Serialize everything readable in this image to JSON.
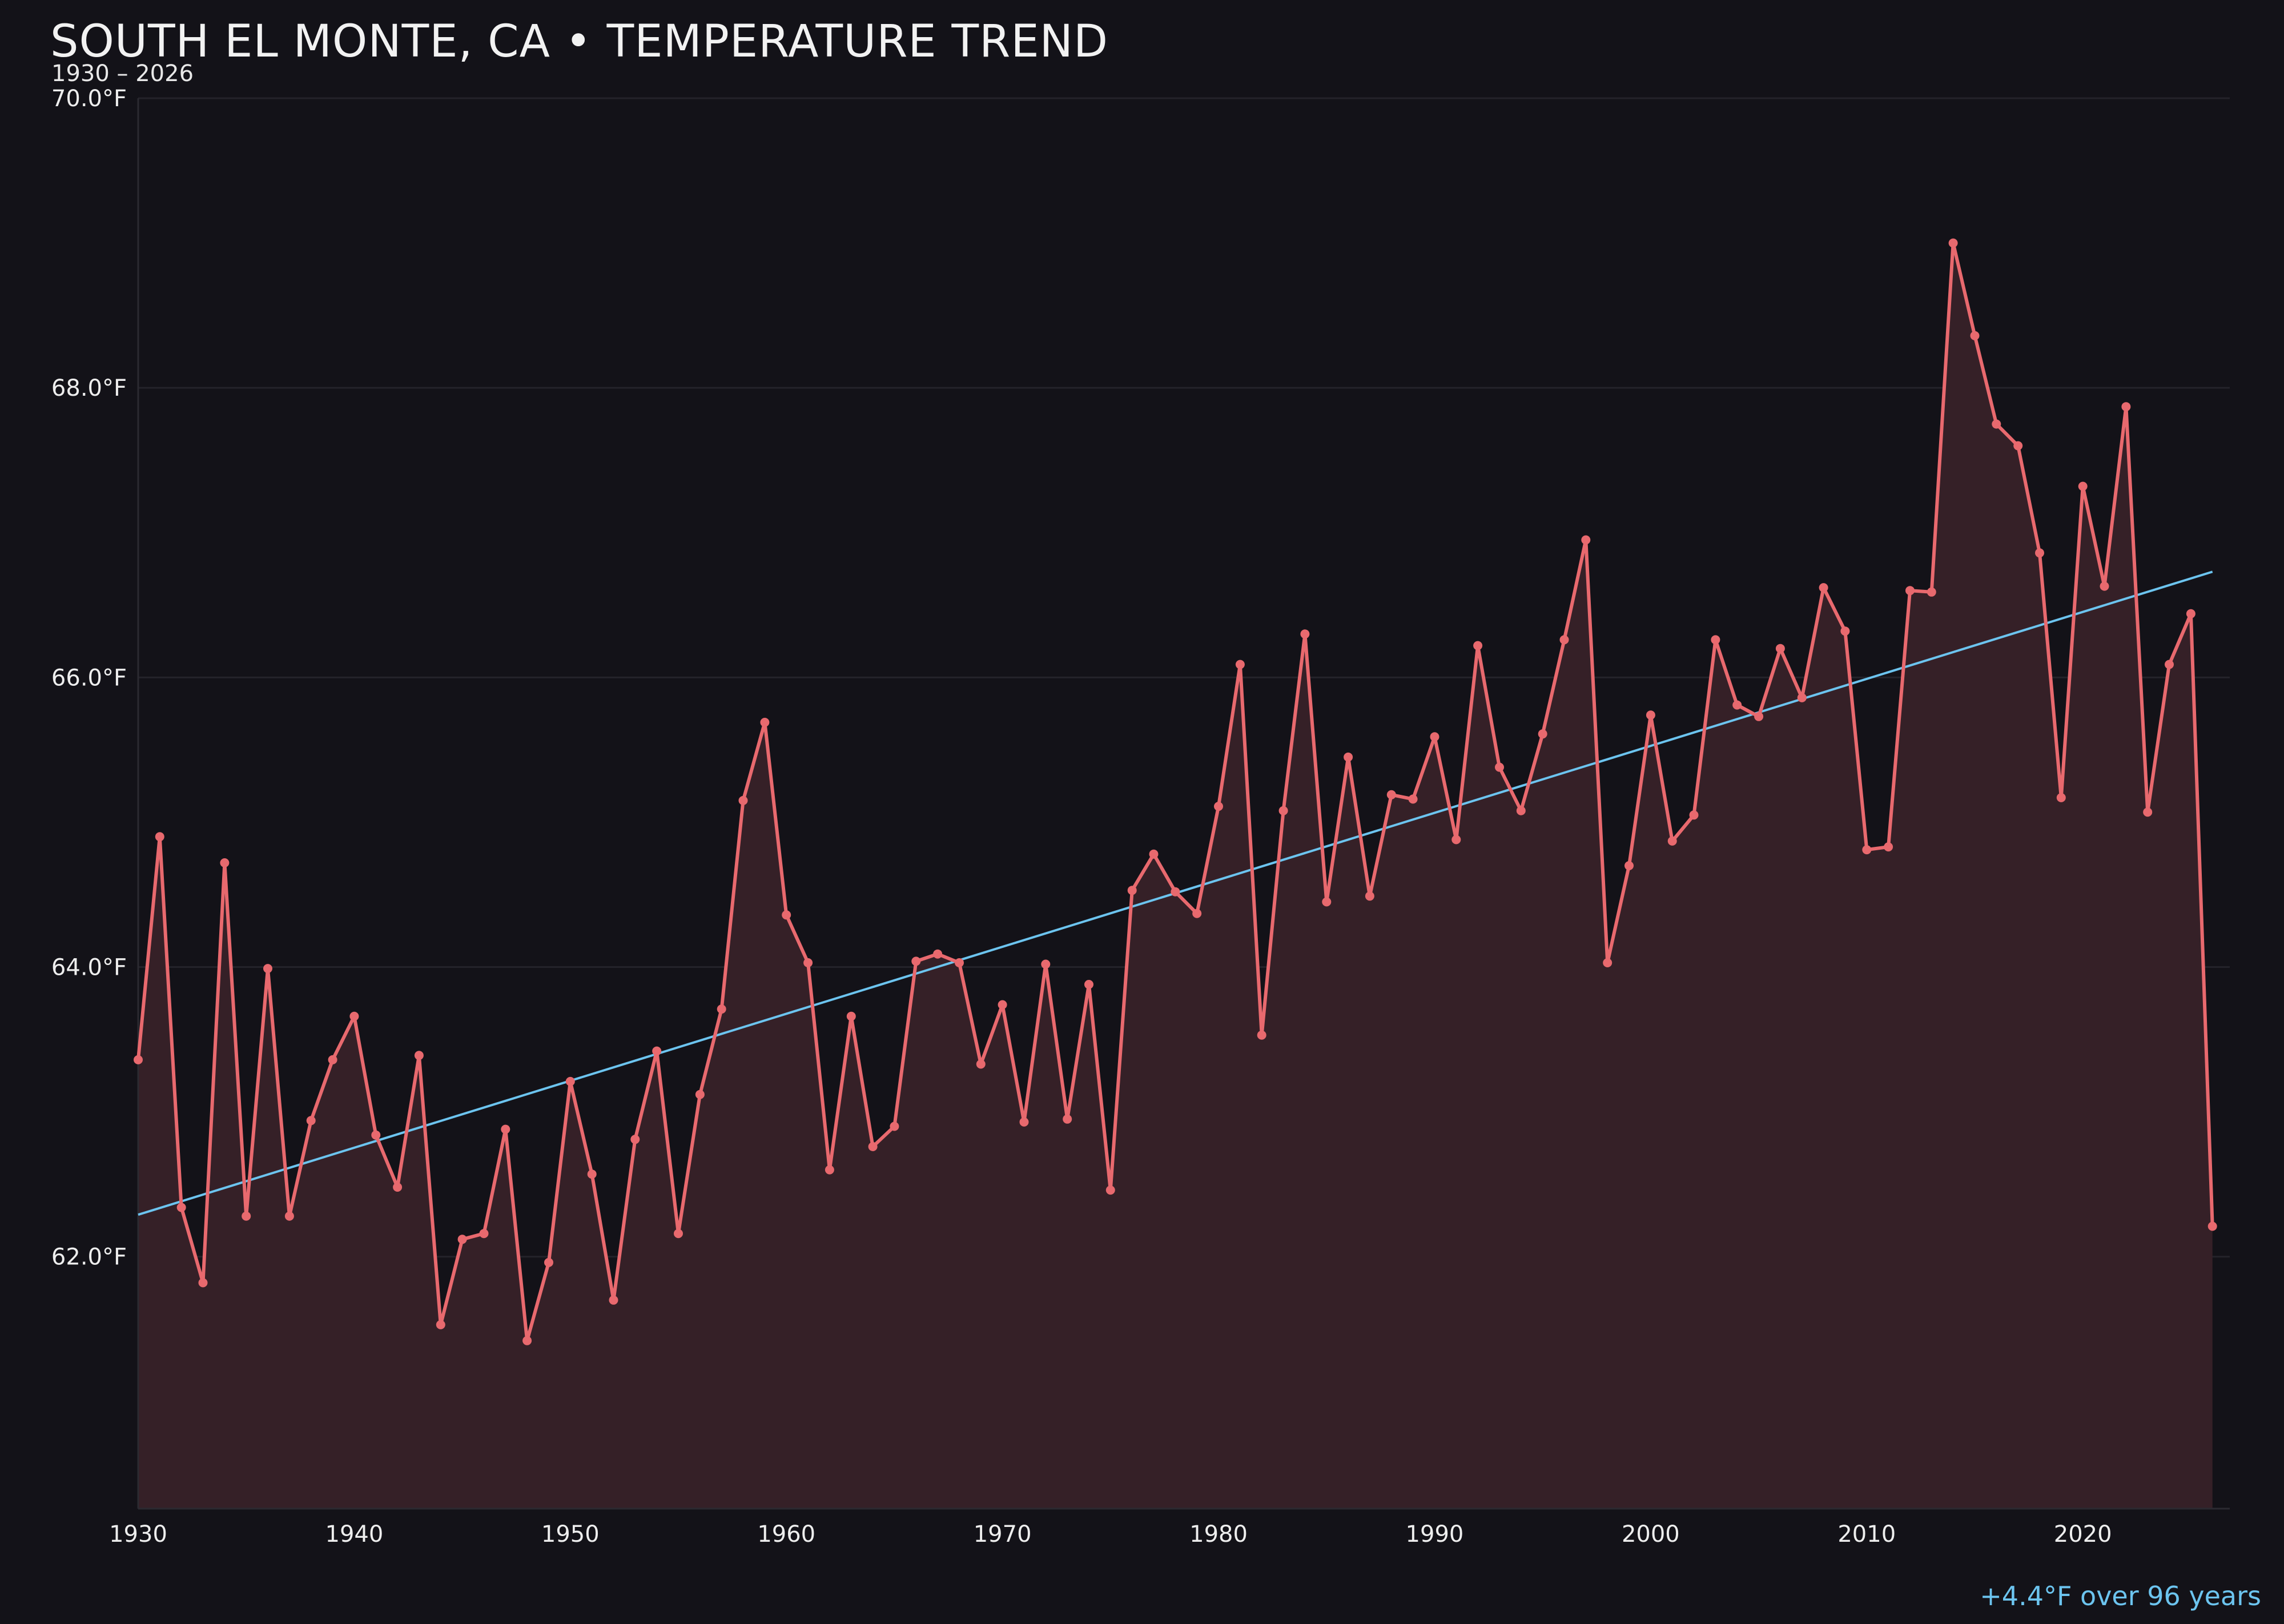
{
  "title": "SOUTH EL MONTE, CA • TEMPERATURE TREND",
  "subtitle": "1930 – 2026",
  "footnote": "+4.4°F over 96 years",
  "colors": {
    "background": "#131218",
    "line": "#e8696e",
    "fill": "#352027",
    "trend": "#6cc4ef",
    "grid": "#24232a",
    "text": "#eeeeee"
  },
  "chart_data": {
    "type": "line",
    "title": "SOUTH EL MONTE, CA • TEMPERATURE TREND",
    "subtitle": "1930 – 2026",
    "xlabel": "",
    "ylabel": "",
    "xlim": [
      1930,
      2026.8
    ],
    "ylim": [
      60.26,
      70.0
    ],
    "y_ticks": [
      62,
      64,
      66,
      68,
      70
    ],
    "y_tick_labels": [
      "62.0°F",
      "64.0°F",
      "66.0°F",
      "68.0°F",
      "70.0°F"
    ],
    "x_ticks": [
      1930,
      1940,
      1950,
      1960,
      1970,
      1980,
      1990,
      2000,
      2010,
      2020
    ],
    "x_tick_labels": [
      "1930",
      "1940",
      "1950",
      "1960",
      "1970",
      "1980",
      "1990",
      "2000",
      "2010",
      "2020"
    ],
    "grid": "horizontal",
    "series": [
      {
        "style": "line+markers+area",
        "x": [
          1930,
          1931,
          1932,
          1933,
          1934,
          1935,
          1936,
          1937,
          1938,
          1939,
          1940,
          1941,
          1942,
          1943,
          1944,
          1945,
          1946,
          1947,
          1948,
          1949,
          1950,
          1951,
          1952,
          1953,
          1954,
          1955,
          1956,
          1957,
          1958,
          1959,
          1960,
          1961,
          1962,
          1963,
          1964,
          1965,
          1966,
          1967,
          1968,
          1969,
          1970,
          1971,
          1972,
          1973,
          1974,
          1975,
          1976,
          1977,
          1978,
          1979,
          1980,
          1981,
          1982,
          1983,
          1984,
          1985,
          1986,
          1987,
          1988,
          1989,
          1990,
          1991,
          1992,
          1993,
          1994,
          1995,
          1996,
          1997,
          1998,
          1999,
          2000,
          2001,
          2002,
          2003,
          2004,
          2005,
          2006,
          2007,
          2008,
          2009,
          2010,
          2011,
          2012,
          2013,
          2014,
          2015,
          2016,
          2017,
          2018,
          2019,
          2020,
          2021,
          2022,
          2023,
          2024,
          2025,
          2026
        ],
        "y": [
          63.36,
          64.9,
          62.34,
          61.82,
          64.72,
          62.28,
          63.99,
          62.28,
          62.94,
          63.36,
          63.66,
          62.84,
          62.48,
          63.39,
          61.53,
          62.12,
          62.16,
          62.88,
          61.42,
          61.96,
          63.21,
          62.57,
          61.7,
          62.81,
          63.42,
          62.16,
          63.12,
          63.71,
          65.15,
          65.69,
          64.36,
          64.03,
          62.6,
          63.66,
          62.76,
          62.9,
          64.04,
          64.09,
          64.03,
          63.33,
          63.74,
          62.93,
          64.02,
          62.95,
          63.88,
          62.46,
          64.53,
          64.78,
          64.52,
          64.37,
          65.11,
          66.09,
          63.53,
          65.08,
          66.3,
          64.45,
          65.45,
          64.49,
          65.19,
          65.16,
          65.59,
          64.88,
          66.22,
          65.38,
          65.08,
          65.61,
          66.26,
          66.95,
          64.03,
          64.7,
          65.74,
          64.87,
          65.05,
          66.26,
          65.81,
          65.73,
          66.2,
          65.86,
          66.62,
          66.32,
          64.81,
          64.83,
          66.6,
          66.59,
          69.0,
          68.36,
          67.75,
          67.6,
          66.86,
          65.17,
          67.32,
          66.63,
          67.87,
          65.07,
          66.09,
          66.44,
          62.21
        ]
      },
      {
        "style": "trend",
        "x": [
          1930,
          2026
        ],
        "y": [
          62.29,
          66.73
        ]
      }
    ]
  }
}
